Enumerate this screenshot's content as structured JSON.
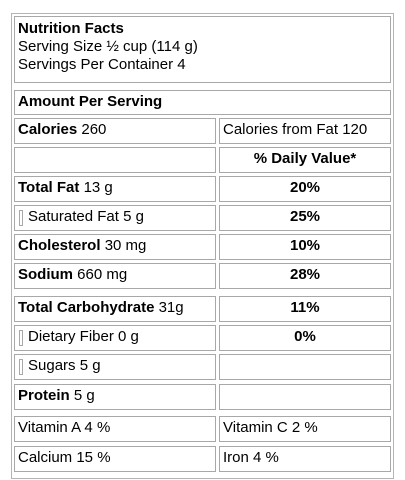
{
  "header": {
    "title": "Nutrition Facts",
    "serving_size": "Serving Size ½ cup (114 g)",
    "servings_per_container": "Servings Per Container 4"
  },
  "amount_per_serving": "Amount Per Serving",
  "calories": {
    "label": "Calories",
    "value": "260",
    "from_fat": "Calories from Fat 120"
  },
  "dv_header": "% Daily Value*",
  "nutrients": [
    {
      "label": "Total Fat",
      "amount": "13 g",
      "dv": "20%"
    },
    {
      "label": "Saturated Fat",
      "amount": "5 g",
      "dv": "25%"
    },
    {
      "label": "Cholesterol",
      "amount": "30 mg",
      "dv": "10%"
    },
    {
      "label": "Sodium",
      "amount": "660 mg",
      "dv": "28%"
    },
    {
      "label": "Total Carbohydrate",
      "amount": "31g",
      "dv": "11%"
    },
    {
      "label": "Dietary Fiber",
      "amount": "0 g",
      "dv": "0%"
    },
    {
      "label": "Sugars",
      "amount": "5 g",
      "dv": ""
    },
    {
      "label": "Protein",
      "amount": "5 g",
      "dv": ""
    }
  ],
  "vitamins": {
    "vitamin_a": "Vitamin A 4 %",
    "vitamin_c": "Vitamin C 2 %",
    "calcium": "Calcium 15 %",
    "iron": "Iron 4 %"
  }
}
